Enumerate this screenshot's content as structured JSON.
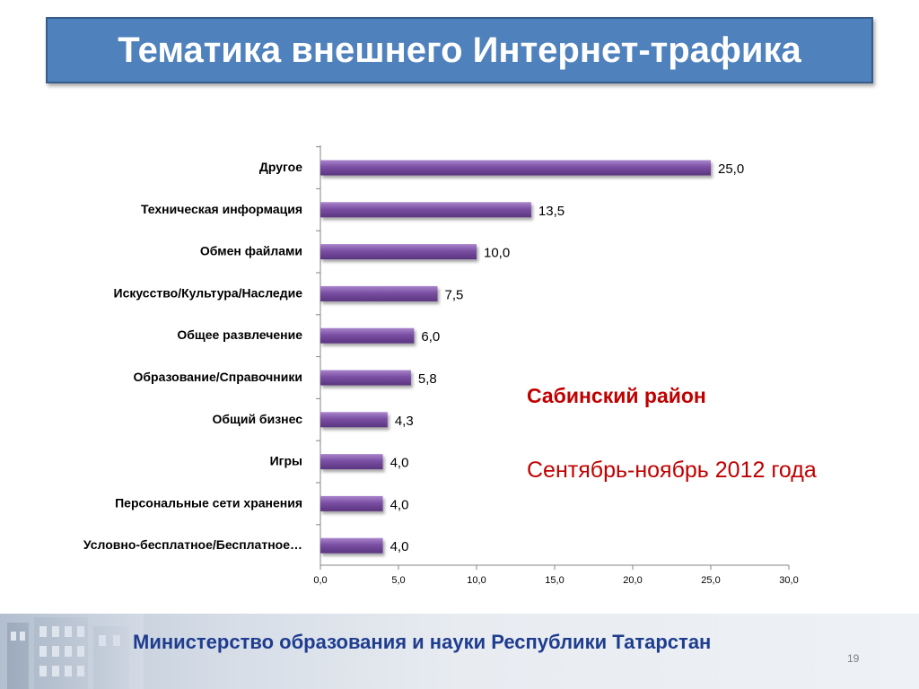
{
  "slide": {
    "title": "Тематика внешнего Интернет-трафика",
    "note_region": "Сабинский район",
    "note_period": "Сентябрь-ноябрь 2012 года",
    "footer": "Министерство образования и науки Республики Татарстан",
    "page_number": "19"
  },
  "colors": {
    "title_bg": "#4f81bd",
    "bar": "#7b4fa3",
    "note": "#c00000",
    "footer_text": "#1f3d8f"
  },
  "chart_data": {
    "type": "bar",
    "orientation": "horizontal",
    "categories": [
      "Другое",
      "Техническая информация",
      "Обмен файлами",
      "Искусство/Культура/Наследие",
      "Общее развлечение",
      "Образование/Справочники",
      "Общий бизнес",
      "Игры",
      "Персональные сети хранения",
      "Условно-бесплатное/Бесплатное…"
    ],
    "values": [
      25.0,
      13.5,
      10.0,
      7.5,
      6.0,
      5.8,
      4.3,
      4.0,
      4.0,
      4.0
    ],
    "value_labels": [
      "25,0",
      "13,5",
      "10,0",
      "7,5",
      "6,0",
      "5,8",
      "4,3",
      "4,0",
      "4,0",
      "4,0"
    ],
    "xlim": [
      0,
      30
    ],
    "ticks": [
      0,
      5,
      10,
      15,
      20,
      25,
      30
    ],
    "tick_labels": [
      "0,0",
      "5,0",
      "10,0",
      "15,0",
      "20,0",
      "25,0",
      "30,0"
    ],
    "grid": false,
    "legend": "none"
  }
}
